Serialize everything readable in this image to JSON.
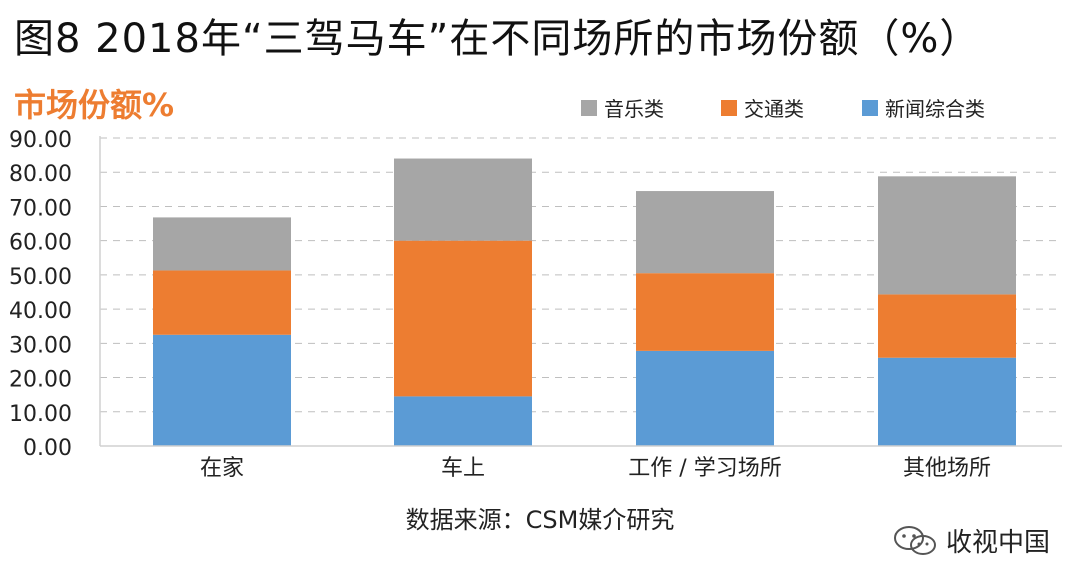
{
  "title": "图8 2018年“三驾马车”在不同场所的市场份额（%）",
  "source": "数据来源：CSM媒介研究",
  "watermark": "收视中国",
  "colors": {
    "music": "#a6a6a6",
    "traffic": "#ed7d31",
    "news": "#5b9bd5",
    "ylabel": "#ed7d31"
  },
  "chart_data": {
    "type": "bar",
    "stacked": true,
    "ylabel": "市场份额%",
    "ylim": [
      0,
      90
    ],
    "yticks": [
      "0.00",
      "10.00",
      "20.00",
      "30.00",
      "40.00",
      "50.00",
      "60.00",
      "70.00",
      "80.00",
      "90.00"
    ],
    "categories": [
      "在家",
      "车上",
      "工作 / 学习场所",
      "其他场所"
    ],
    "legend_position": "top-right",
    "grid": true,
    "series": [
      {
        "name": "新闻综合类",
        "key": "news",
        "values": [
          32.5,
          14.5,
          27.8,
          25.8
        ]
      },
      {
        "name": "交通类",
        "key": "traffic",
        "values": [
          18.8,
          45.5,
          22.7,
          18.5
        ]
      },
      {
        "name": "音乐类",
        "key": "music",
        "values": [
          15.5,
          24.0,
          24.0,
          34.5
        ]
      }
    ],
    "legend_order": [
      "music",
      "traffic",
      "news"
    ]
  }
}
